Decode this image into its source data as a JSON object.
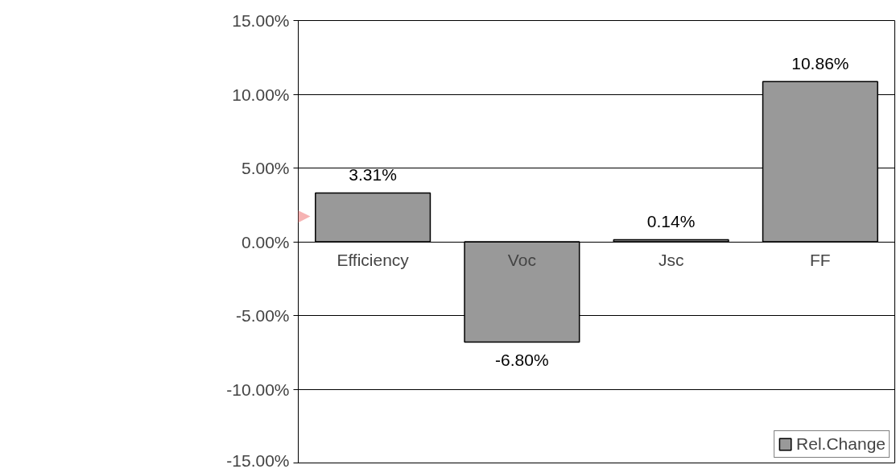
{
  "chart_data": {
    "type": "bar",
    "categories": [
      "Efficiency",
      "Voc",
      "Jsc",
      "FF"
    ],
    "series": [
      {
        "name": "Rel.Change",
        "color": "#999999",
        "values": [
          3.31,
          -6.8,
          0.14,
          10.86
        ],
        "value_labels": [
          "3.31%",
          "-6.80%",
          "0.14%",
          "10.86%"
        ]
      }
    ],
    "ylim": [
      -15,
      15
    ],
    "yticks": [
      {
        "value": -15,
        "label": "-15.00%"
      },
      {
        "value": -10,
        "label": "-10.00%"
      },
      {
        "value": -5,
        "label": "-5.00%"
      },
      {
        "value": 0,
        "label": "0.00%"
      },
      {
        "value": 5,
        "label": "5.00%"
      },
      {
        "value": 10,
        "label": "10.00%"
      },
      {
        "value": 15,
        "label": "15.00%"
      }
    ],
    "grid": "y",
    "legend": "bottom right"
  }
}
